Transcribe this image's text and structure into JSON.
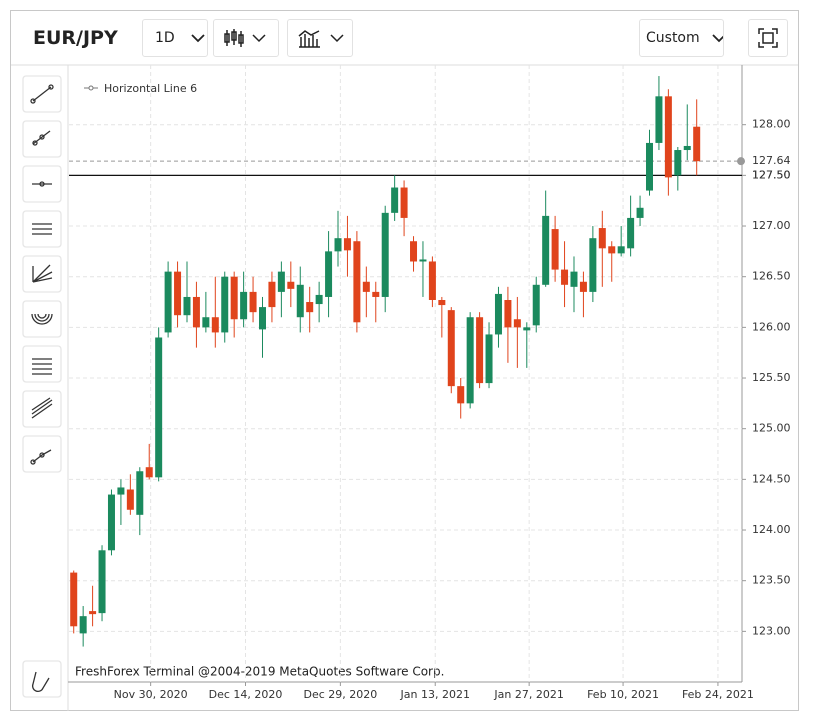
{
  "toolbar": {
    "symbol": "EUR/JPY",
    "timeframe": "1D",
    "chart_mode": "Custom"
  },
  "chart_data": {
    "type": "candlestick",
    "legend_label": "Horizontal Line 6",
    "footer": "FreshForex Terminal @2004-2019 MetaQuotes Software Corp.",
    "up_color": "#1b8a5e",
    "down_color": "#e0441c",
    "xlim": [
      -0.5,
      70.8
    ],
    "xticks": [
      {
        "value": 8.15,
        "label": "Nov 30, 2020"
      },
      {
        "value": 18.2,
        "label": "Dec 14, 2020"
      },
      {
        "value": 28.25,
        "label": "Dec 29, 2020"
      },
      {
        "value": 38.3,
        "label": "Jan 13, 2021"
      },
      {
        "value": 48.25,
        "label": "Jan 27, 2021"
      },
      {
        "value": 58.2,
        "label": "Feb 10, 2021"
      },
      {
        "value": 68.25,
        "label": "Feb 24, 2021"
      }
    ],
    "ylim": [
      122.52,
      128.52
    ],
    "yticks": [
      {
        "value": 123,
        "label": "123.00"
      },
      {
        "value": 123.5,
        "label": "123.50"
      },
      {
        "value": 124,
        "label": "124.00"
      },
      {
        "value": 124.5,
        "label": "124.50"
      },
      {
        "value": 125,
        "label": "125.00"
      },
      {
        "value": 125.5,
        "label": "125.50"
      },
      {
        "value": 126,
        "label": "126.00"
      },
      {
        "value": 126.5,
        "label": "126.50"
      },
      {
        "value": 127,
        "label": "127.00"
      },
      {
        "value": 127.5,
        "label": "127.50"
      },
      {
        "value": 128,
        "label": "128.00"
      }
    ],
    "grid": true,
    "horizontal_line": {
      "value": 127.5,
      "label": "127.50"
    },
    "last_price": {
      "value": 127.64,
      "label": "127.64"
    },
    "open": [
      123.58,
      122.98,
      123.2,
      123.18,
      123.8,
      124.35,
      124.4,
      124.15,
      124.62,
      124.52,
      125.95,
      126.55,
      126.12,
      126.3,
      126.0,
      126.1,
      125.95,
      126.5,
      126.08,
      126.35,
      125.98,
      126.45,
      126.35,
      126.45,
      126.1,
      126.25,
      126.23,
      126.3,
      126.75,
      126.88,
      126.85,
      126.45,
      126.35,
      126.3,
      127.13,
      127.38,
      126.85,
      126.65,
      126.65,
      126.27,
      126.17,
      125.42,
      125.25,
      126.1,
      125.45,
      125.93,
      126.27,
      126.08,
      125.97,
      126.02,
      126.42,
      126.97,
      126.57,
      126.4,
      126.45,
      126.35,
      126.98,
      126.8,
      126.73,
      126.78,
      127.08,
      127.35,
      127.82,
      128.28,
      127.5,
      127.75,
      127.98
    ],
    "high": [
      123.6,
      123.25,
      123.45,
      123.85,
      124.4,
      124.5,
      124.55,
      124.62,
      124.85,
      126.0,
      126.65,
      126.65,
      126.65,
      126.45,
      126.35,
      126.5,
      126.55,
      126.55,
      126.55,
      126.5,
      126.3,
      126.55,
      126.65,
      126.65,
      126.6,
      126.4,
      126.45,
      126.95,
      127.15,
      127.1,
      126.95,
      126.6,
      126.45,
      127.2,
      127.5,
      127.45,
      126.9,
      126.85,
      126.7,
      126.3,
      126.2,
      125.5,
      126.15,
      126.15,
      126.05,
      126.4,
      126.4,
      126.3,
      126.05,
      126.5,
      127.35,
      127.1,
      126.85,
      126.7,
      126.55,
      127.0,
      127.15,
      126.85,
      127.0,
      127.3,
      127.3,
      127.95,
      128.48,
      128.35,
      127.78,
      128.2,
      128.25
    ],
    "low": [
      122.98,
      122.85,
      123.05,
      123.1,
      123.75,
      124.05,
      124.15,
      123.95,
      124.5,
      124.48,
      125.9,
      126.0,
      126.05,
      125.8,
      125.95,
      125.8,
      125.85,
      125.9,
      126.0,
      126.05,
      125.7,
      126.05,
      126.1,
      126.2,
      125.95,
      125.95,
      126.05,
      126.1,
      126.6,
      126.5,
      125.95,
      126.1,
      126.05,
      126.15,
      127.05,
      126.9,
      126.55,
      126.3,
      126.2,
      125.9,
      125.35,
      125.1,
      125.2,
      125.4,
      125.4,
      125.8,
      125.65,
      125.6,
      125.6,
      125.95,
      126.4,
      126.45,
      126.2,
      126.15,
      126.1,
      126.25,
      126.4,
      126.45,
      126.7,
      126.7,
      127.0,
      127.3,
      127.75,
      127.3,
      127.35,
      127.65,
      127.5
    ],
    "close": [
      123.05,
      123.15,
      123.17,
      123.8,
      124.35,
      124.42,
      124.2,
      124.58,
      124.52,
      125.9,
      126.55,
      126.12,
      126.3,
      126.0,
      126.1,
      125.95,
      126.5,
      126.08,
      126.35,
      126.15,
      126.2,
      126.2,
      126.55,
      126.38,
      126.42,
      126.15,
      126.32,
      126.75,
      126.88,
      126.76,
      126.05,
      126.35,
      126.3,
      127.13,
      127.38,
      127.08,
      126.65,
      126.67,
      126.27,
      126.22,
      125.42,
      125.25,
      126.1,
      125.45,
      125.93,
      126.33,
      126.0,
      126.0,
      126.0,
      126.42,
      127.1,
      126.57,
      126.42,
      126.55,
      126.35,
      126.88,
      126.78,
      126.73,
      126.8,
      127.08,
      127.18,
      127.82,
      128.28,
      127.48,
      127.75,
      127.79,
      127.64
    ]
  }
}
